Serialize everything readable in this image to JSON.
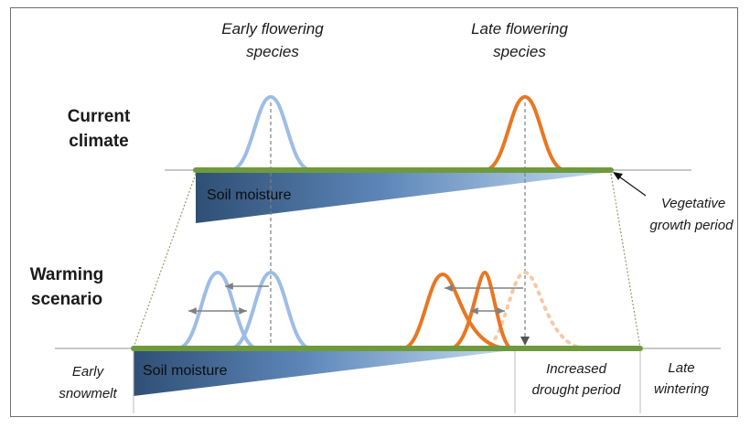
{
  "labels": {
    "early_species": [
      "Early flowering",
      "species"
    ],
    "late_species": [
      "Late flowering",
      "species"
    ],
    "current_climate": [
      "Current",
      "climate"
    ],
    "warming_scenario": [
      "Warming",
      "scenario"
    ],
    "vegetative_growth": [
      "Vegetative",
      "growth period"
    ],
    "soil_moisture_top": "Soil moisture",
    "soil_moisture_bottom": "Soil  moisture",
    "early_snowmelt": [
      "Early",
      "snowmelt"
    ],
    "increased_drought": [
      "Increased",
      "drought period"
    ],
    "late_wintering": [
      "Late",
      "wintering"
    ]
  },
  "colors": {
    "early_curve": "#9dbde6",
    "late_curve": "#e87722",
    "late_shifted_dotted": "#f6c9a6",
    "growth_bar": "#6f9a3c",
    "soil_dark": "#2f4f75",
    "soil_light": "#c5dcf2",
    "axis_line": "#a6a6a6",
    "arrow": "#808080"
  },
  "icons": {
    "shift_arrows": "double-headed-arrow",
    "callout_arrow": "arrow-pointer"
  }
}
